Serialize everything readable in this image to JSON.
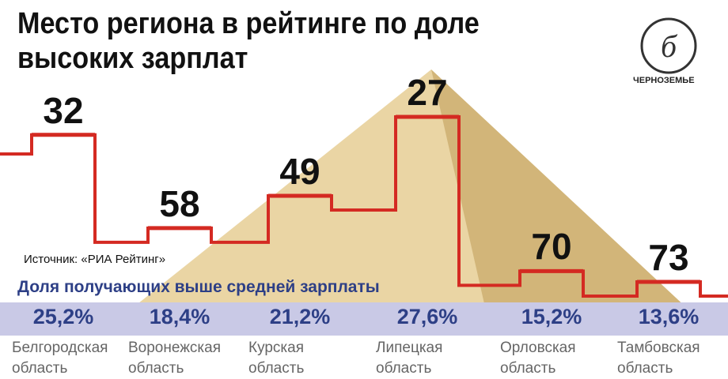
{
  "chart_data": {
    "type": "step",
    "title": "Место региона в рейтинге по доле высоких зарплат",
    "source": "Источник: «РИА Рейтинг»",
    "subtitle": "Доля получающих выше средней зарплаты",
    "logo": "ЧЕРНОЗЕМЬЕ",
    "categories": [
      "Белгородская область",
      "Воронежская область",
      "Курская область",
      "Липецкая область",
      "Орловская область",
      "Тамбовская область"
    ],
    "values": [
      32,
      58,
      49,
      27,
      70,
      73
    ],
    "color": "#d42a22",
    "shares": {
      "values": [
        25.2,
        18.4,
        21.2,
        27.6,
        15.2,
        13.6
      ],
      "value_labels": [
        "25,2%",
        "18,4%",
        "21,2%",
        "27,6%",
        "15,2%",
        "13,6%"
      ]
    }
  }
}
